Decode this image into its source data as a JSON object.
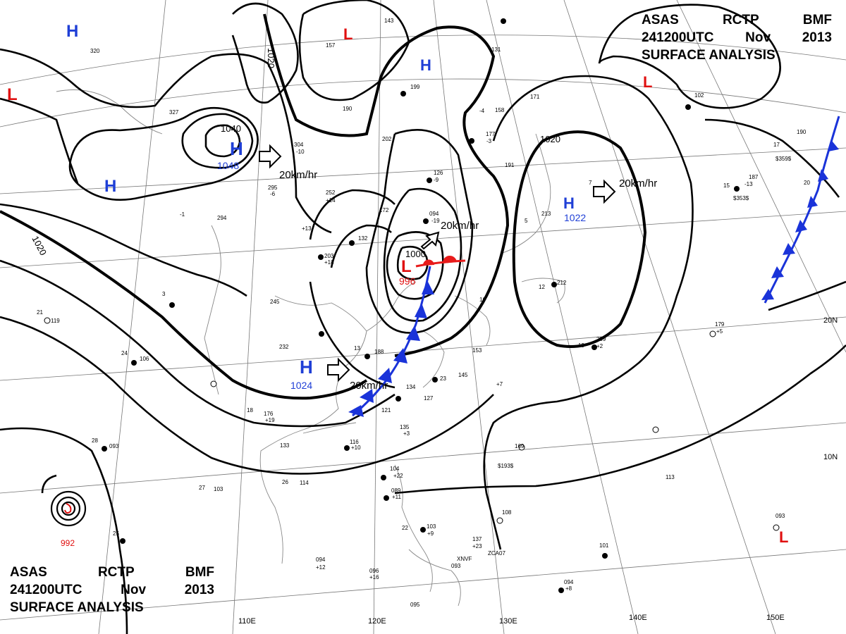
{
  "title": {
    "agency": "ASAS",
    "station": "RCTP",
    "office": "BMF",
    "datetime": "241200UTC",
    "month": "Nov",
    "year": "2013",
    "product": "SURFACE ANALYSIS"
  },
  "longitude_labels": [
    "110E",
    "120E",
    "130E",
    "140E",
    "150E"
  ],
  "latitude_labels": [
    "20N",
    "10N"
  ],
  "isobar_labels": [
    "1020",
    "1020",
    "1040",
    "1000",
    "1020"
  ],
  "pressure_centers": {
    "high_1048": {
      "symbol": "H",
      "value": "1048"
    },
    "high_1024": {
      "symbol": "H",
      "value": "1024"
    },
    "high_1022": {
      "symbol": "H",
      "value": "1022"
    },
    "low_996": {
      "symbol": "L",
      "value": "996"
    },
    "typhoon": {
      "value": "992"
    },
    "unlabeled_highs": [
      "H",
      "H",
      "H"
    ],
    "unlabeled_lows": [
      "L",
      "L",
      "L",
      "L"
    ]
  },
  "motion_labels": [
    "20km/hr",
    "20km/hr",
    "20km/hr",
    "20km/hr"
  ],
  "station_values": {
    "s320": "320",
    "s327": "327",
    "s304": "304",
    "s252": "252",
    "s294": "294",
    "s295": "295",
    "s190": "190",
    "s199": "199",
    "s143": "143",
    "s157": "157",
    "s202": "202",
    "s172": "172",
    "s126": "126",
    "s131": "131",
    "s158": "158",
    "s177": "177",
    "s171": "171",
    "s191": "191",
    "s102": "102",
    "s187": "187",
    "s190b": "190",
    "s213": "213",
    "s094": "094",
    "s132": "132",
    "s203": "203",
    "s245": "245",
    "s232": "232",
    "s188": "188",
    "s176": "176",
    "s133": "133",
    "s116": "116",
    "s134": "134",
    "s127": "127",
    "s121": "121",
    "s135": "135",
    "s145": "145",
    "s153": "153",
    "s104": "104",
    "s089": "089",
    "s103": "103",
    "s108": "108",
    "s137": "137",
    "s093": "093",
    "s096": "096",
    "s095": "095",
    "s094b": "094",
    "s101": "101",
    "s113": "113",
    "s169": "169",
    "s209": "209",
    "s179": "179",
    "s212": "212",
    "s119": "119",
    "s106": "106",
    "s093b": "093",
    "s114": "114",
    "s103b": "103",
    "s093c": "093",
    "s094c": "094"
  },
  "station_temps": {
    "t21": "21",
    "t24": "24",
    "t28": "28",
    "t25": "25",
    "t27": "27",
    "t26": "26",
    "t18": "18",
    "t23": "23",
    "t19": "19",
    "t17": "17",
    "t15": "15",
    "t20": "20",
    "t13": "13",
    "t16": "16",
    "t22": "22",
    "t12": "12",
    "t5": "5",
    "t7": "7",
    "t3": "3"
  },
  "tendencies": {
    "p22": "+22",
    "p11": "+11",
    "p14": "+14",
    "p13": "+13",
    "p18": "+18",
    "p12": "+12",
    "p16": "+16",
    "p19": "+19",
    "p10": "+10",
    "p23": "+23",
    "p9": "+9",
    "p8": "+8",
    "p2": "+2",
    "p5": "+5",
    "p7": "+7",
    "p3": "+3",
    "m19": "-19",
    "m9": "-9",
    "m10": "-10",
    "m6": "-6",
    "m3": "-3",
    "m13": "-13",
    "m4": "-4",
    "m1": "-1"
  },
  "ship_ids": [
    "ZCA07",
    "XNVF",
    "$193$",
    "$359$",
    "$353$"
  ],
  "colors": {
    "high": "#1f3fd6",
    "low": "#e01010",
    "cold_front": "#1a33d9",
    "warm_front": "#e81b1b",
    "isobar": "#000000",
    "grid": "#777777",
    "coast": "#888888"
  },
  "map_info": {
    "projection": "polar stereographic",
    "isobar_interval_hpa": 4,
    "fronts": [
      "cold front",
      "warm front"
    ],
    "typhoon_present": true
  }
}
